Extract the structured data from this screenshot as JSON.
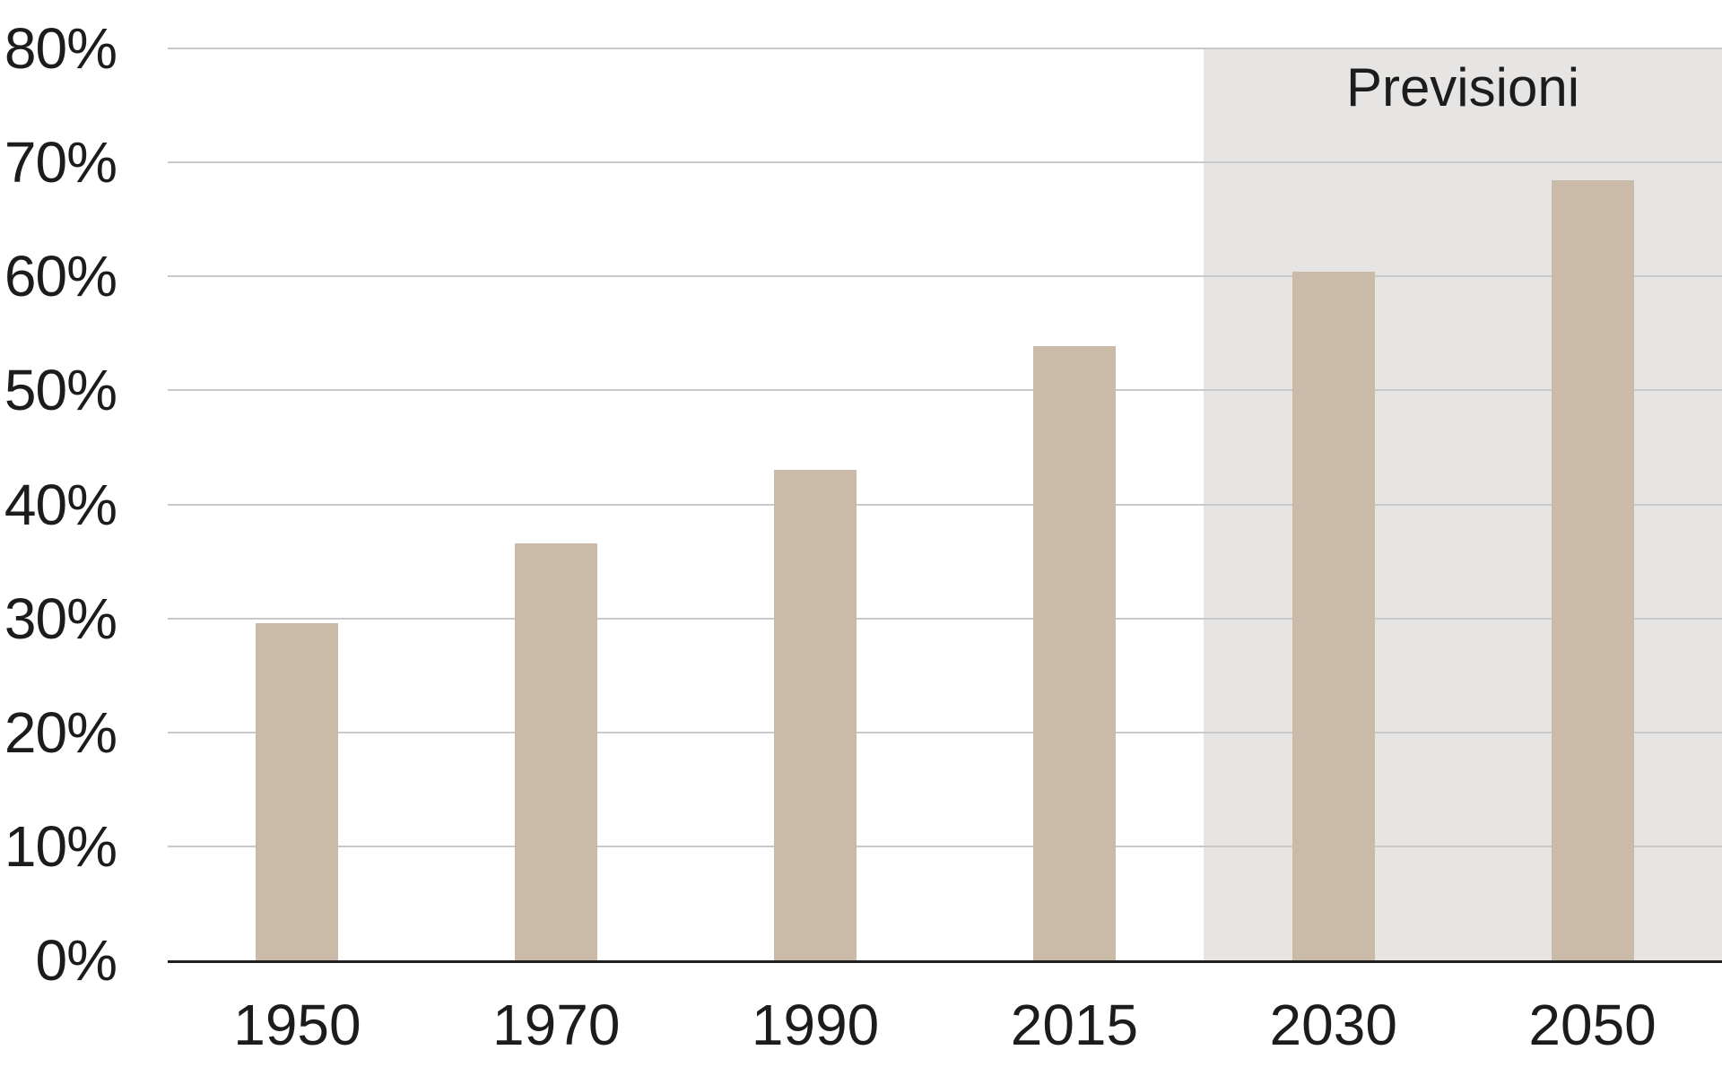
{
  "chart_data": {
    "type": "bar",
    "categories": [
      "1950",
      "1970",
      "1990",
      "2015",
      "2030",
      "2050"
    ],
    "values": [
      29.6,
      36.6,
      43.0,
      53.9,
      60.4,
      68.4
    ],
    "title": "",
    "xlabel": "",
    "ylabel": "",
    "ylim": [
      0,
      80
    ],
    "y_ticks": [
      "0%",
      "10%",
      "20%",
      "30%",
      "40%",
      "50%",
      "60%",
      "70%",
      "80%"
    ],
    "grid": true,
    "legend": null,
    "forecast_region": {
      "label": "Previsioni",
      "start_category_index": 4,
      "covered_categories": [
        "2030",
        "2050"
      ]
    },
    "colors": {
      "bar": "#cabba8",
      "forecast_bg": "#e6e5e4",
      "gridline": "#c9c9c9",
      "axis": "#1f1f1f",
      "text": "#1c1c1c"
    }
  }
}
